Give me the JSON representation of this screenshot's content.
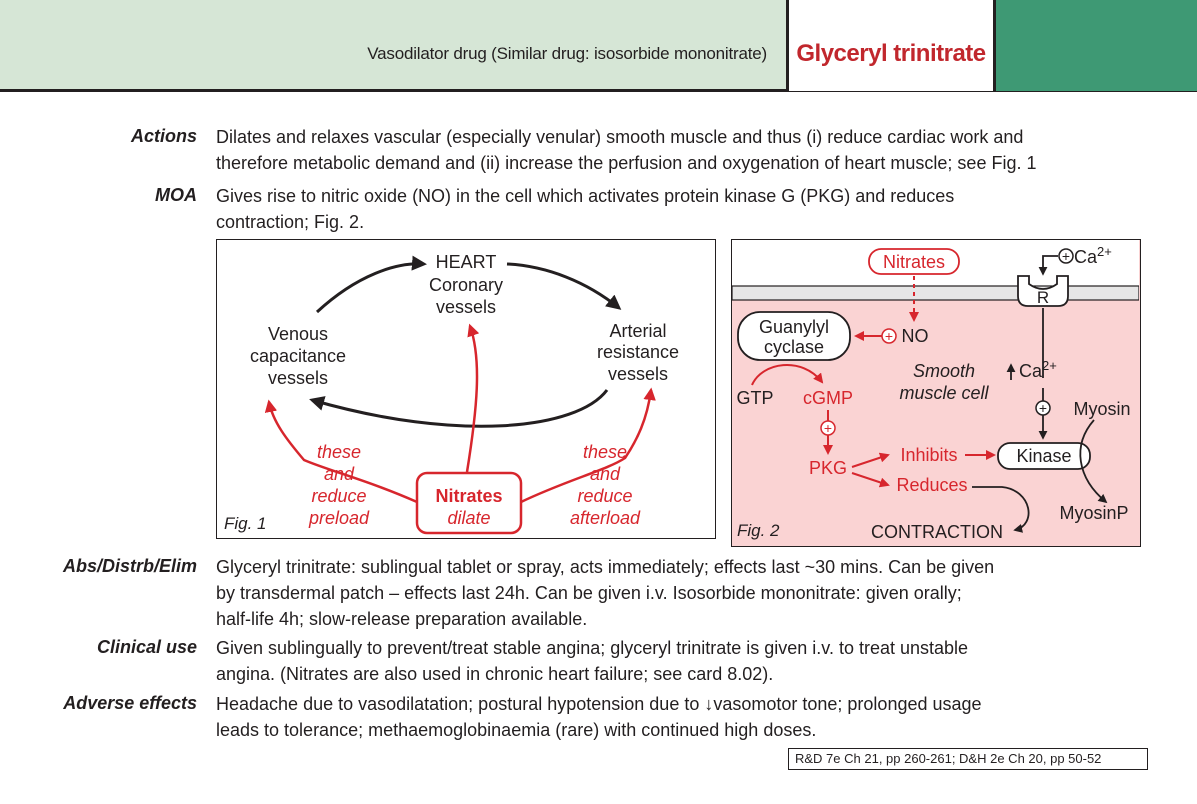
{
  "header": {
    "subtitle": "Vasodilator drug (Similar drug: isosorbide mononitrate)",
    "title": "Glyceryl trinitrate",
    "colors": {
      "band": "#d6e6d6",
      "accent": "#3e9974",
      "title": "#c1272d"
    }
  },
  "sections": [
    {
      "label": "Actions",
      "lines": [
        "Dilates and relaxes vascular (especially venular) smooth muscle and thus (i) reduce cardiac work and",
        "therefore metabolic demand and (ii) increase the perfusion and oxygenation of heart muscle; see Fig. 1"
      ]
    },
    {
      "label": "MOA",
      "lines": [
        "Gives rise to nitric oxide (NO) in the cell which activates protein kinase G (PKG) and reduces",
        "contraction; Fig. 2."
      ]
    },
    {
      "label": "Abs/Distrb/Elim",
      "lines": [
        "Glyceryl trinitrate: sublingual tablet or spray, acts immediately; effects last ~30 mins. Can be given",
        "by transdermal patch – effects last 24h. Can be given i.v. Isosorbide mononitrate: given orally;",
        "half-life 4h; slow-release preparation available."
      ]
    },
    {
      "label": "Clinical use",
      "lines": [
        "Given sublingually to prevent/treat stable angina; glyceryl trinitrate is given i.v. to treat unstable",
        "angina. (Nitrates are also used in chronic heart failure; see card 8.02)."
      ]
    },
    {
      "label": "Adverse effects",
      "lines": [
        "Headache due to vasodilatation; postural hypotension due to ↓vasomotor tone; prolonged usage",
        "leads to tolerance; methaemoglobinaemia (rare) with continued high doses."
      ]
    }
  ],
  "fig1": {
    "caption": "Fig. 1",
    "heart": [
      "HEART",
      "Coronary",
      "vessels"
    ],
    "venous": [
      "Venous",
      "capacitance",
      "vessels"
    ],
    "arterial": [
      "Arterial",
      "resistance",
      "vessels"
    ],
    "preload": [
      "these",
      "and",
      "reduce",
      "preload"
    ],
    "afterload": [
      "these",
      "and",
      "reduce",
      "afterload"
    ],
    "nitrates": "Nitrates",
    "dilate": "dilate",
    "colors": {
      "red": "#d7262d"
    }
  },
  "fig2": {
    "caption": "Fig. 2",
    "nitrates": "Nitrates",
    "ca_top": "Ca",
    "ca_sup": "2+",
    "receptor": "R",
    "guanylyl": [
      "Guanylyl",
      "cyclase"
    ],
    "no": "NO",
    "smooth": [
      "Smooth",
      "muscle cell"
    ],
    "ca_in": "Ca",
    "ca_in_sup": "2+",
    "gtp": "GTP",
    "cgmp": "cGMP",
    "myosin": "Myosin",
    "pkg": "PKG",
    "inhibits": "Inhibits",
    "kinase": "Kinase",
    "reduces": "Reduces",
    "myosinp": "MyosinP",
    "contraction": "CONTRACTION",
    "colors": {
      "bg": "#fad3d3",
      "red": "#d7262d",
      "membrane": "#e6e6e6"
    }
  },
  "reference": "R&D 7e Ch 21, pp 260-261; D&H 2e Ch 20, pp 50-52"
}
